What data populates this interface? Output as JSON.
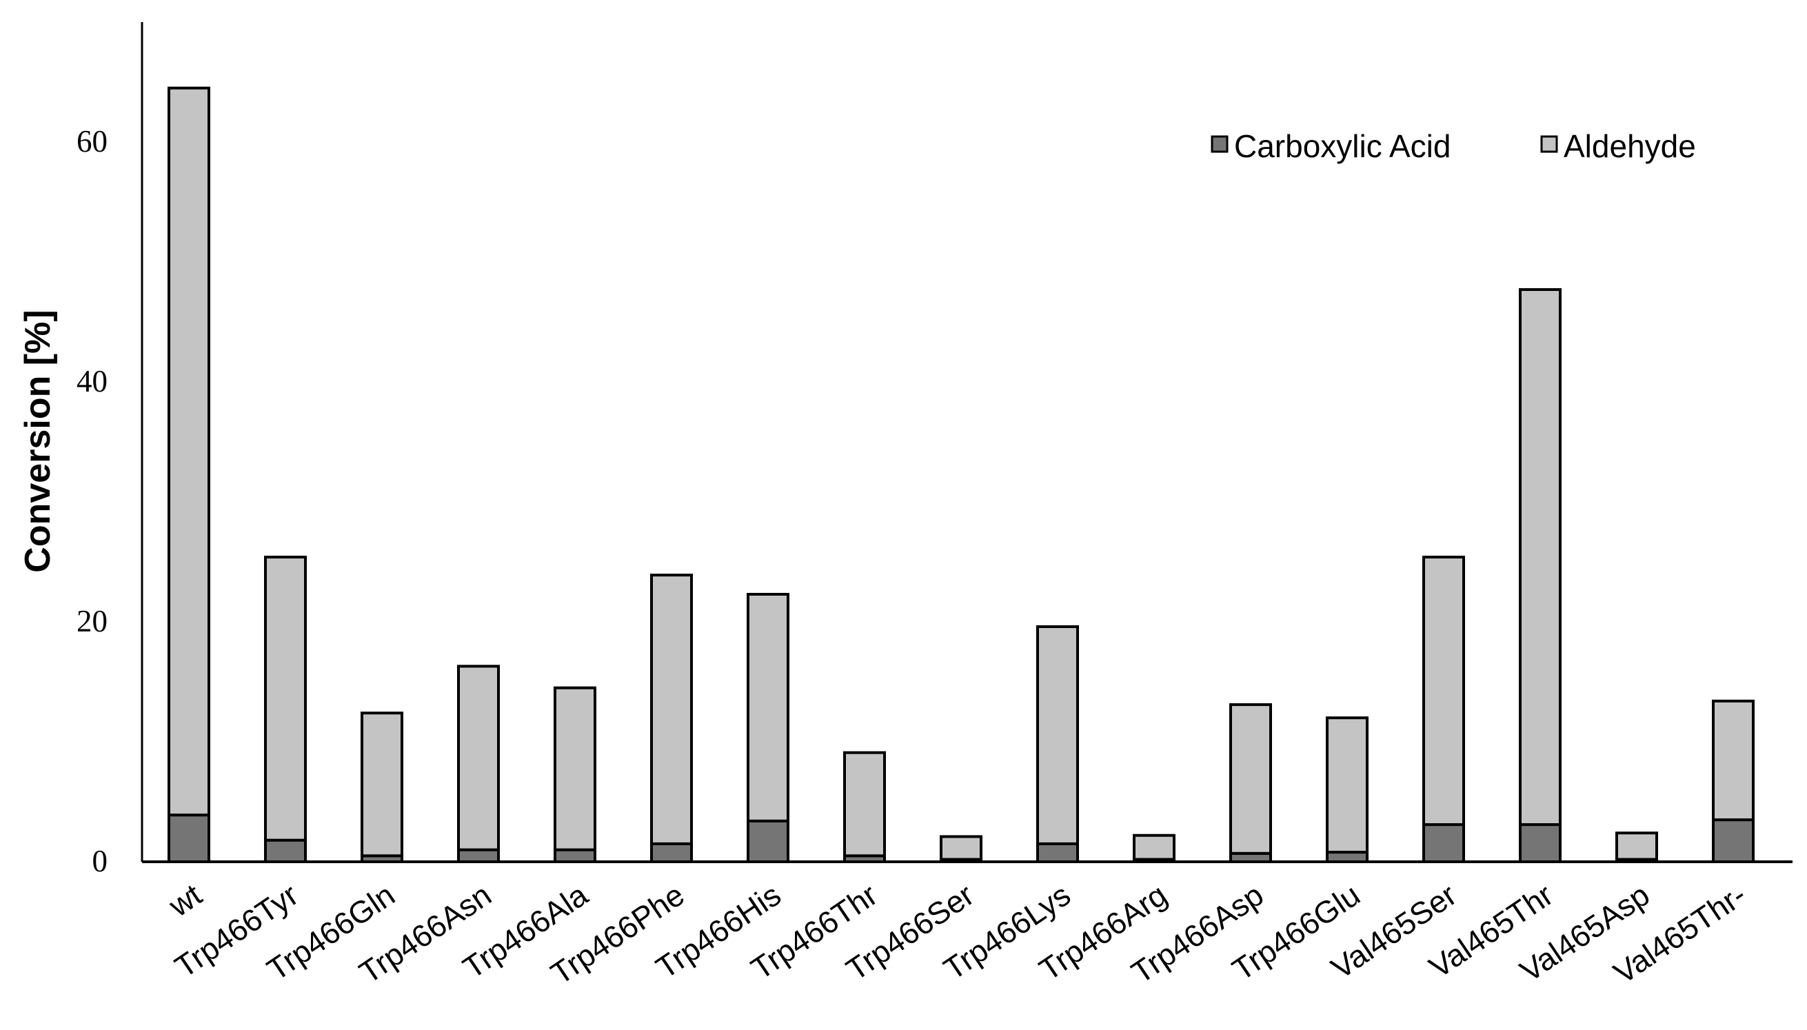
{
  "chart_data": {
    "type": "bar",
    "stacked": true,
    "title": "",
    "xlabel": "",
    "ylabel": "Conversion [%]",
    "ylim": [
      0,
      70
    ],
    "yticks": [
      0,
      20,
      40,
      60
    ],
    "grid": false,
    "legend_position": "top-right",
    "categories": [
      "wt",
      "Trp466Tyr",
      "Trp466Gln",
      "Trp466Asn",
      "Trp466Ala",
      "Trp466Phe",
      "Trp466His",
      "Trp466Thr",
      "Trp466Ser",
      "Trp466Lys",
      "Trp466Arg",
      "Trp466Asp",
      "Trp466Glu",
      "Val465Ser",
      "Val465Thr",
      "Val465Asp",
      "Val465Thr-"
    ],
    "series": [
      {
        "name": "Carboxylic Acid",
        "color": "#757575",
        "values": [
          3.9,
          1.8,
          0.5,
          1.0,
          1.0,
          1.5,
          3.4,
          0.5,
          0.2,
          1.5,
          0.2,
          0.7,
          0.8,
          3.1,
          3.1,
          0.2,
          3.5
        ]
      },
      {
        "name": "Aldehyde",
        "color": "#c4c4c4",
        "values": [
          60.6,
          23.6,
          11.9,
          15.3,
          13.5,
          22.4,
          18.9,
          8.6,
          1.9,
          18.1,
          2.0,
          12.4,
          11.2,
          22.3,
          44.6,
          2.2,
          9.9
        ]
      }
    ]
  }
}
